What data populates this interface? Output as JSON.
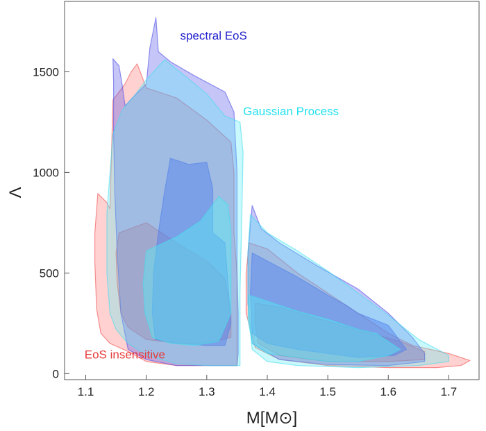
{
  "chart_data": {
    "type": "area",
    "xlabel": "M[M⊙]",
    "ylabel": "Λ",
    "xlim": [
      1.065,
      1.75
    ],
    "ylim": [
      -30,
      1850
    ],
    "x_ticks": [
      1.1,
      1.2,
      1.3,
      1.4,
      1.5,
      1.6,
      1.7
    ],
    "x_tick_labels": [
      "1.1",
      "1.2",
      "1.3",
      "1.4",
      "1.5",
      "1.6",
      "1.7"
    ],
    "y_ticks": [
      0,
      500,
      1000,
      1500
    ],
    "y_tick_labels": [
      "0",
      "500",
      "1000",
      "1500"
    ],
    "grid": false,
    "annotations": [
      {
        "text": "spectral EoS",
        "x": 1.256,
        "y": 1660,
        "color": "#1f1fcc"
      },
      {
        "text": "Gaussian Process",
        "x": 1.36,
        "y": 1285,
        "color": "#25e0f0"
      },
      {
        "text": "EoS insensitive",
        "x": 1.098,
        "y": 75,
        "color": "#e63a3a"
      }
    ],
    "series": [
      {
        "fill": "#ff7070",
        "stroke": "#f05050",
        "regions": [
          {
            "level": "outer",
            "points": [
              [
                1.12,
                895
              ],
              [
                1.135,
                850
              ],
              [
                1.14,
                820
              ],
              [
                1.145,
                1360
              ],
              [
                1.165,
                1440
              ],
              [
                1.175,
                1500
              ],
              [
                1.185,
                1540
              ],
              [
                1.2,
                1420
              ],
              [
                1.25,
                1370
              ],
              [
                1.3,
                1260
              ],
              [
                1.34,
                1150
              ],
              [
                1.345,
                1000
              ],
              [
                1.345,
                700
              ],
              [
                1.35,
                500
              ],
              [
                1.35,
                300
              ],
              [
                1.35,
                100
              ],
              [
                1.35,
                40
              ],
              [
                1.25,
                40
              ],
              [
                1.2,
                60
              ],
              [
                1.17,
                110
              ],
              [
                1.14,
                150
              ],
              [
                1.125,
                200
              ],
              [
                1.118,
                320
              ],
              [
                1.115,
                550
              ],
              [
                1.115,
                700
              ]
            ]
          },
          {
            "level": "outer",
            "points": [
              [
                1.37,
                650
              ],
              [
                1.4,
                620
              ],
              [
                1.45,
                500
              ],
              [
                1.5,
                400
              ],
              [
                1.55,
                300
              ],
              [
                1.6,
                200
              ],
              [
                1.64,
                140
              ],
              [
                1.7,
                100
              ],
              [
                1.735,
                65
              ],
              [
                1.72,
                40
              ],
              [
                1.68,
                30
              ],
              [
                1.6,
                30
              ],
              [
                1.5,
                40
              ],
              [
                1.42,
                70
              ],
              [
                1.38,
                130
              ],
              [
                1.365,
                300
              ],
              [
                1.365,
                500
              ]
            ]
          },
          {
            "level": "inner",
            "points": [
              [
                1.155,
                700
              ],
              [
                1.2,
                750
              ],
              [
                1.25,
                650
              ],
              [
                1.3,
                560
              ],
              [
                1.33,
                470
              ],
              [
                1.34,
                300
              ],
              [
                1.34,
                180
              ],
              [
                1.3,
                150
              ],
              [
                1.25,
                150
              ],
              [
                1.2,
                170
              ],
              [
                1.17,
                230
              ],
              [
                1.158,
                300
              ],
              [
                1.152,
                450
              ],
              [
                1.15,
                600
              ]
            ]
          },
          {
            "level": "inner",
            "points": [
              [
                1.38,
                350
              ],
              [
                1.42,
                330
              ],
              [
                1.5,
                260
              ],
              [
                1.56,
                210
              ],
              [
                1.62,
                160
              ],
              [
                1.66,
                110
              ],
              [
                1.66,
                70
              ],
              [
                1.6,
                60
              ],
              [
                1.5,
                60
              ],
              [
                1.42,
                90
              ],
              [
                1.385,
                150
              ],
              [
                1.38,
                250
              ]
            ]
          }
        ]
      },
      {
        "fill": "#4a4ae8",
        "stroke": "#5050e6",
        "regions": [
          {
            "level": "outer",
            "points": [
              [
                1.145,
                1565
              ],
              [
                1.155,
                1530
              ],
              [
                1.16,
                1440
              ],
              [
                1.165,
                1330
              ],
              [
                1.18,
                1380
              ],
              [
                1.2,
                1440
              ],
              [
                1.206,
                1620
              ],
              [
                1.216,
                1770
              ],
              [
                1.22,
                1600
              ],
              [
                1.24,
                1550
              ],
              [
                1.28,
                1480
              ],
              [
                1.33,
                1400
              ],
              [
                1.345,
                1300
              ],
              [
                1.35,
                1000
              ],
              [
                1.35,
                700
              ],
              [
                1.35,
                500
              ],
              [
                1.352,
                300
              ],
              [
                1.352,
                100
              ],
              [
                1.35,
                40
              ],
              [
                1.25,
                40
              ],
              [
                1.2,
                70
              ],
              [
                1.17,
                120
              ],
              [
                1.158,
                300
              ],
              [
                1.152,
                600
              ],
              [
                1.148,
                900
              ],
              [
                1.146,
                1200
              ],
              [
                1.146,
                1450
              ]
            ]
          },
          {
            "level": "outer",
            "points": [
              [
                1.375,
                835
              ],
              [
                1.39,
                720
              ],
              [
                1.42,
                650
              ],
              [
                1.48,
                540
              ],
              [
                1.55,
                420
              ],
              [
                1.6,
                300
              ],
              [
                1.64,
                180
              ],
              [
                1.66,
                100
              ],
              [
                1.66,
                60
              ],
              [
                1.6,
                40
              ],
              [
                1.5,
                45
              ],
              [
                1.42,
                70
              ],
              [
                1.375,
                150
              ],
              [
                1.368,
                350
              ],
              [
                1.368,
                600
              ]
            ]
          },
          {
            "level": "inner",
            "points": [
              [
                1.24,
                1070
              ],
              [
                1.27,
                1040
              ],
              [
                1.3,
                1050
              ],
              [
                1.31,
                920
              ],
              [
                1.31,
                700
              ],
              [
                1.33,
                650
              ],
              [
                1.335,
                450
              ],
              [
                1.34,
                250
              ],
              [
                1.33,
                140
              ],
              [
                1.3,
                140
              ],
              [
                1.25,
                150
              ],
              [
                1.215,
                170
              ],
              [
                1.21,
                300
              ],
              [
                1.212,
                500
              ],
              [
                1.22,
                700
              ],
              [
                1.23,
                900
              ]
            ]
          },
          {
            "level": "inner",
            "points": [
              [
                1.375,
                600
              ],
              [
                1.4,
                560
              ],
              [
                1.45,
                480
              ],
              [
                1.5,
                390
              ],
              [
                1.53,
                340
              ],
              [
                1.55,
                300
              ],
              [
                1.6,
                240
              ],
              [
                1.63,
                120
              ],
              [
                1.61,
                90
              ],
              [
                1.55,
                80
              ],
              [
                1.5,
                100
              ],
              [
                1.45,
                120
              ],
              [
                1.4,
                150
              ],
              [
                1.375,
                200
              ],
              [
                1.372,
                400
              ]
            ]
          }
        ]
      },
      {
        "fill": "#58ecf5",
        "stroke": "#45dcec",
        "regions": [
          {
            "level": "outer",
            "points": [
              [
                1.145,
                1190
              ],
              [
                1.16,
                1310
              ],
              [
                1.18,
                1380
              ],
              [
                1.2,
                1460
              ],
              [
                1.23,
                1560
              ],
              [
                1.26,
                1490
              ],
              [
                1.3,
                1390
              ],
              [
                1.33,
                1280
              ],
              [
                1.355,
                1250
              ],
              [
                1.36,
                1100
              ],
              [
                1.358,
                800
              ],
              [
                1.355,
                400
              ],
              [
                1.355,
                100
              ],
              [
                1.355,
                40
              ],
              [
                1.3,
                40
              ],
              [
                1.25,
                50
              ],
              [
                1.2,
                90
              ],
              [
                1.17,
                150
              ],
              [
                1.15,
                220
              ],
              [
                1.14,
                300
              ],
              [
                1.135,
                500
              ],
              [
                1.135,
                800
              ],
              [
                1.14,
                1000
              ]
            ]
          },
          {
            "level": "outer",
            "points": [
              [
                1.372,
                790
              ],
              [
                1.4,
                700
              ],
              [
                1.45,
                610
              ],
              [
                1.5,
                510
              ],
              [
                1.55,
                400
              ],
              [
                1.6,
                290
              ],
              [
                1.65,
                170
              ],
              [
                1.7,
                90
              ],
              [
                1.7,
                60
              ],
              [
                1.65,
                40
              ],
              [
                1.55,
                30
              ],
              [
                1.45,
                40
              ],
              [
                1.4,
                60
              ],
              [
                1.375,
                120
              ],
              [
                1.368,
                350
              ],
              [
                1.368,
                600
              ]
            ]
          },
          {
            "level": "inner",
            "points": [
              [
                1.2,
                610
              ],
              [
                1.25,
                680
              ],
              [
                1.29,
                760
              ],
              [
                1.32,
                880
              ],
              [
                1.335,
                840
              ],
              [
                1.34,
                700
              ],
              [
                1.34,
                500
              ],
              [
                1.34,
                300
              ],
              [
                1.32,
                160
              ],
              [
                1.28,
                140
              ],
              [
                1.24,
                150
              ],
              [
                1.21,
                180
              ],
              [
                1.198,
                300
              ],
              [
                1.195,
                450
              ]
            ]
          },
          {
            "level": "inner",
            "points": [
              [
                1.37,
                390
              ],
              [
                1.4,
                360
              ],
              [
                1.45,
                310
              ],
              [
                1.5,
                270
              ],
              [
                1.55,
                220
              ],
              [
                1.58,
                200
              ],
              [
                1.62,
                120
              ],
              [
                1.6,
                90
              ],
              [
                1.55,
                60
              ],
              [
                1.5,
                60
              ],
              [
                1.45,
                80
              ],
              [
                1.4,
                100
              ],
              [
                1.375,
                150
              ],
              [
                1.368,
                270
              ]
            ]
          }
        ]
      }
    ]
  }
}
